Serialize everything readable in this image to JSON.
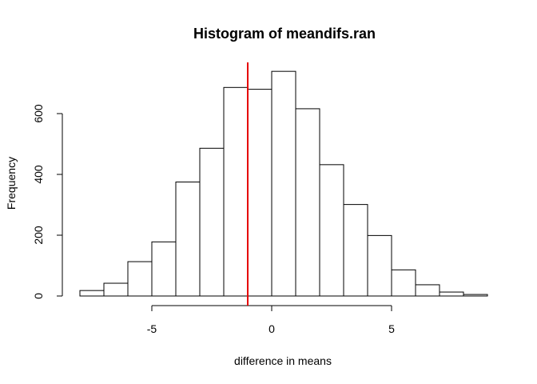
{
  "chart_data": {
    "type": "histogram",
    "title": "Histogram of meandifs.ran",
    "xlabel": "difference in means",
    "ylabel": "Frequency",
    "bin_edges": [
      -8,
      -7,
      -6,
      -5,
      -4,
      -3,
      -2,
      -1,
      0,
      1,
      2,
      3,
      4,
      5,
      6,
      7,
      8,
      9
    ],
    "counts": [
      18,
      42,
      113,
      178,
      375,
      486,
      686,
      680,
      739,
      616,
      432,
      301,
      199,
      86,
      37,
      13,
      5
    ],
    "x_ticks": [
      -5,
      0,
      5
    ],
    "y_ticks": [
      0,
      200,
      400,
      600
    ],
    "xlim": [
      -8,
      9
    ],
    "ylim": [
      0,
      780
    ],
    "reference_line": {
      "x": -1,
      "color": "#e60000"
    },
    "bar_fill": "#ffffff",
    "bar_stroke": "#000000",
    "grid": false,
    "legend": "none"
  }
}
